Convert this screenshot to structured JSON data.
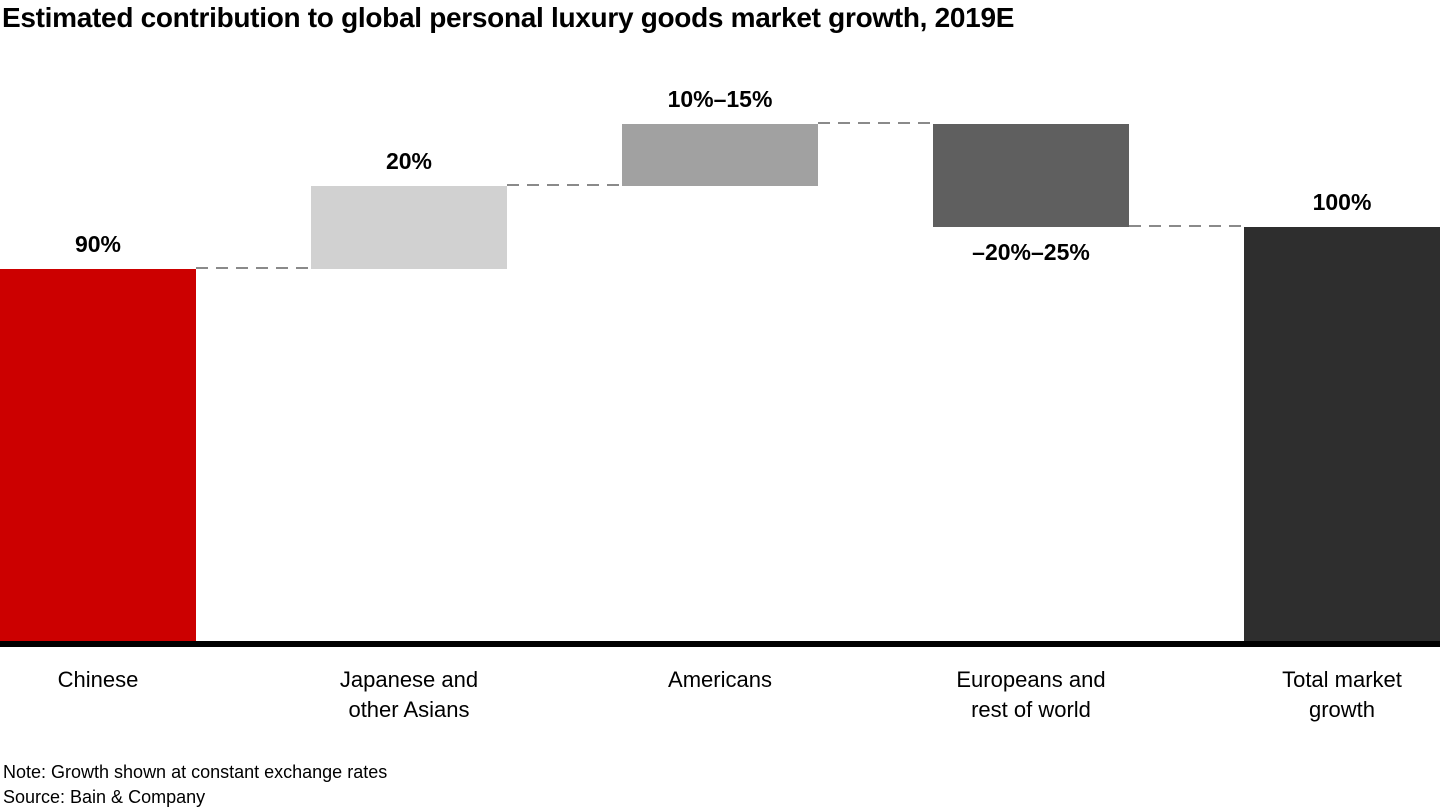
{
  "title": "Estimated contribution to global personal luxury goods market growth, 2019E",
  "footer": {
    "note": "Note: Growth shown at constant exchange rates",
    "source": "Source: Bain & Company"
  },
  "chart_data": {
    "type": "bar",
    "subtype": "waterfall",
    "title": "Estimated contribution to global personal luxury goods market growth, 2019E",
    "unit": "%",
    "ylim": [
      0,
      125
    ],
    "grid": false,
    "legend": false,
    "categories": [
      "Chinese",
      "Japanese and other Asians",
      "Americans",
      "Europeans and rest of world",
      "Total market growth"
    ],
    "colors": {
      "axis": "#000000",
      "connector": "#8a8a8a"
    },
    "bars": [
      {
        "id": "chinese",
        "category": [
          "Chinese"
        ],
        "label": "90%",
        "value": 90,
        "start": 0,
        "end": 90,
        "label_position": "above",
        "color": "#cc0000"
      },
      {
        "id": "japanese-other-asians",
        "category": [
          "Japanese and",
          "other Asians"
        ],
        "label": "20%",
        "value": 20,
        "start": 90,
        "end": 110,
        "label_position": "above",
        "color": "#d1d1d1"
      },
      {
        "id": "americans",
        "category": [
          "Americans"
        ],
        "label": "10%–15%",
        "value": 15,
        "value_range": [
          10,
          15
        ],
        "start": 110,
        "end": 125,
        "label_position": "above",
        "color": "#a1a1a1"
      },
      {
        "id": "europeans-rest-of-world",
        "category": [
          "Europeans and",
          "rest of world"
        ],
        "label": "–20%–25%",
        "value": -25,
        "value_range": [
          -25,
          -20
        ],
        "start": 125,
        "end": 100,
        "label_position": "below",
        "color": "#5f5f5f"
      },
      {
        "id": "total-market-growth",
        "category": [
          "Total market",
          "growth"
        ],
        "label": "100%",
        "value": 100,
        "start": 0,
        "end": 100,
        "label_position": "above",
        "color": "#2e2e2e"
      }
    ]
  }
}
